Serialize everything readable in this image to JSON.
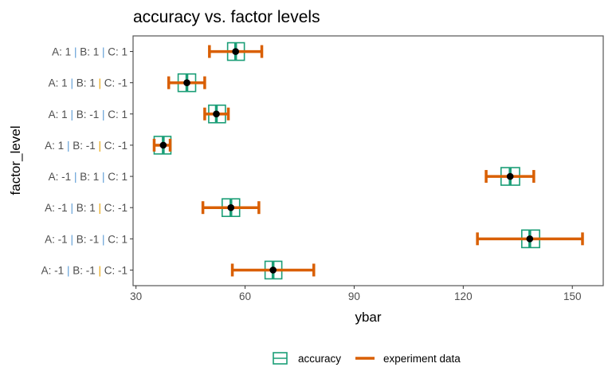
{
  "chart_data": {
    "type": "errorbar",
    "title": "accuracy vs. factor levels",
    "xlabel": "ybar",
    "ylabel": "factor_level",
    "xlim": [
      29.2,
      158.5
    ],
    "xticks": [
      30,
      60,
      90,
      120,
      150
    ],
    "grid": false,
    "legend_position": "bottom",
    "legend": [
      {
        "name": "accuracy",
        "color": "#1b9e77"
      },
      {
        "name": "experiment data",
        "color": "#d95f02"
      }
    ],
    "categories": [
      {
        "A": "1",
        "B": "1",
        "C": "1"
      },
      {
        "A": "1",
        "B": "1",
        "C": "-1"
      },
      {
        "A": "1",
        "B": "-1",
        "C": "1"
      },
      {
        "A": "1",
        "B": "-1",
        "C": "-1"
      },
      {
        "A": "-1",
        "B": "1",
        "C": "1"
      },
      {
        "A": "-1",
        "B": "1",
        "C": "-1"
      },
      {
        "A": "-1",
        "B": "-1",
        "C": "1"
      },
      {
        "A": "-1",
        "B": "-1",
        "C": "-1"
      }
    ],
    "label_parts": {
      "A": "A: ",
      "B": "B: ",
      "C": "C: ",
      "sep": " | "
    },
    "pipe_colors": [
      "#5b9bd5",
      "#e69f00"
    ],
    "mean": [
      57.4,
      44.0,
      52.1,
      37.5,
      132.9,
      56.1,
      138.3,
      67.7
    ],
    "experiment_low": [
      50.2,
      39.0,
      48.9,
      35.0,
      126.3,
      48.4,
      123.9,
      56.5
    ],
    "experiment_high": [
      64.6,
      48.9,
      55.4,
      39.4,
      139.4,
      63.8,
      152.8,
      78.9
    ],
    "accuracy_low": [
      55.2,
      41.6,
      50.0,
      35.0,
      130.4,
      53.7,
      136.1,
      65.5
    ],
    "accuracy_high": [
      59.8,
      46.4,
      54.6,
      39.6,
      135.5,
      58.5,
      141.0,
      70.1
    ]
  }
}
